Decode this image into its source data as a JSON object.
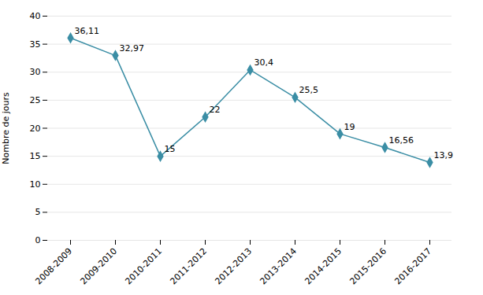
{
  "chart_data": {
    "type": "line",
    "categories": [
      "2008-2009",
      "2009-2010",
      "2010-2011",
      "2011-2012",
      "2012-2013",
      "2013-2014",
      "2014-2015",
      "2015-2016",
      "2016-2017"
    ],
    "values": [
      36.11,
      32.97,
      15,
      22,
      30.4,
      25.5,
      19,
      16.56,
      13.9
    ],
    "value_labels": [
      "36,11",
      "32,97",
      "15",
      "22",
      "30,4",
      "25,5",
      "19",
      "16,56",
      "13,9"
    ],
    "data_labels": true,
    "color": "#3B8EA5",
    "marker": "diamond",
    "ylabel": "Nombre de jours",
    "ylim": [
      0,
      40
    ],
    "yticks": [
      0,
      5,
      10,
      15,
      20,
      25,
      30,
      35,
      40
    ],
    "grid": true
  }
}
